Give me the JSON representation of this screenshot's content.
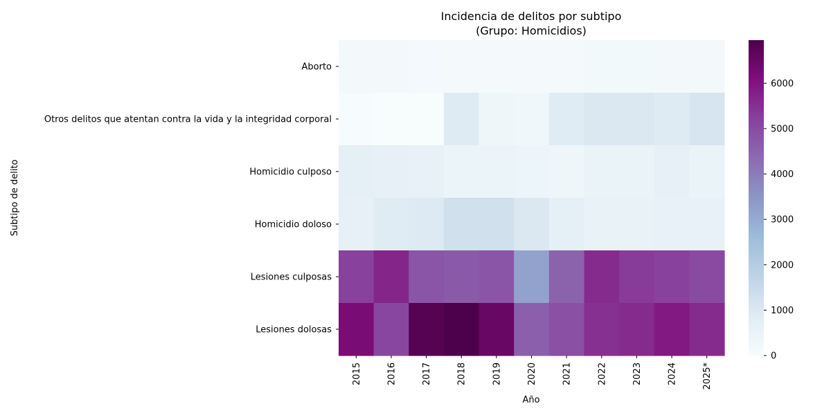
{
  "chart_data": {
    "type": "heatmap",
    "title": "Incidencia de delitos por subtipo",
    "subtitle": "(Grupo: Homicidios)",
    "xlabel": "Año",
    "ylabel": "Subtipo de delito",
    "x": [
      "2015",
      "2016",
      "2017",
      "2018",
      "2019",
      "2020",
      "2021",
      "2022",
      "2023",
      "2024",
      "2025*"
    ],
    "y": [
      "Aborto",
      "Otros delitos que atentan contra la vida y la integridad corporal",
      "Homicidio culposo",
      "Homicidio doloso",
      "Lesiones culposas",
      "Lesiones dolosas"
    ],
    "values": [
      [
        150,
        160,
        140,
        130,
        120,
        100,
        130,
        170,
        180,
        160,
        150
      ],
      [
        30,
        10,
        5,
        900,
        300,
        250,
        850,
        1000,
        1000,
        900,
        1100
      ],
      [
        700,
        650,
        600,
        450,
        450,
        400,
        350,
        500,
        500,
        650,
        500
      ],
      [
        650,
        850,
        950,
        1300,
        1300,
        1000,
        700,
        550,
        550,
        600,
        600
      ],
      [
        5200,
        5700,
        4800,
        4700,
        4800,
        3200,
        4500,
        5600,
        5300,
        5200,
        5000
      ],
      [
        6200,
        5100,
        6800,
        6950,
        6500,
        4600,
        4900,
        5500,
        5600,
        5900,
        5600
      ]
    ],
    "colorscale": "BuPu",
    "colorbar": {
      "min": 0,
      "max": 6950,
      "ticks": [
        0,
        1000,
        2000,
        3000,
        4000,
        5000,
        6000
      ]
    },
    "grid": false,
    "legend": "colorbar-right"
  }
}
